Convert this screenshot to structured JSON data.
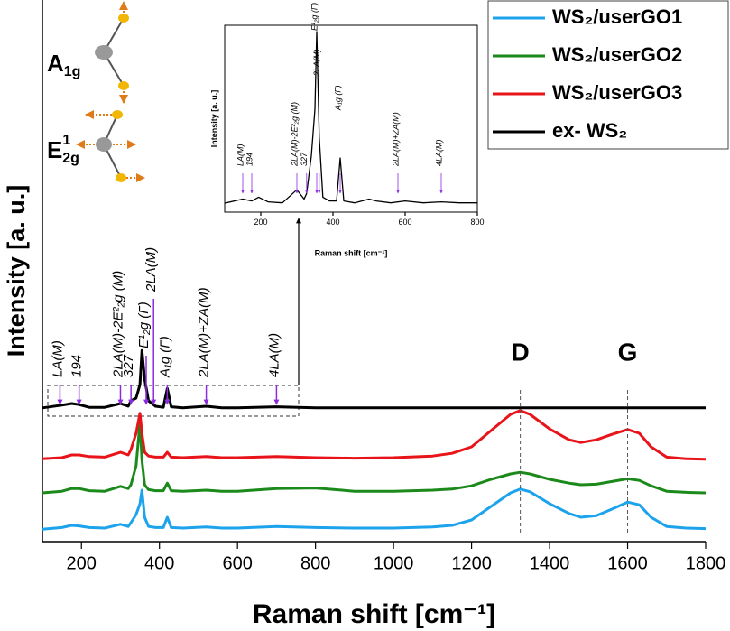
{
  "chart_data": [
    {
      "type": "line",
      "xlabel": "Raman shift [cm⁻¹]",
      "ylabel": "Intensity [a. u.]",
      "xlim": [
        100,
        1800
      ],
      "ylim": [
        0,
        100
      ],
      "xticks": [
        200,
        400,
        600,
        800,
        1000,
        1200,
        1400,
        1600,
        1800
      ],
      "legend": "upper right",
      "x": [
        100,
        150,
        175,
        194,
        220,
        260,
        300,
        320,
        327,
        340,
        350,
        355,
        362,
        372,
        390,
        410,
        420,
        430,
        460,
        520,
        560,
        600,
        700,
        800,
        900,
        1000,
        1100,
        1150,
        1200,
        1250,
        1300,
        1325,
        1350,
        1400,
        1450,
        1480,
        1520,
        1560,
        1600,
        1630,
        1660,
        1700,
        1750,
        1800
      ],
      "series": [
        {
          "name": "WS₂/userGO1",
          "color": "#1ca3ec",
          "values": [
            2.3,
            2.6,
            3.0,
            2.9,
            2.6,
            2.5,
            3.2,
            2.8,
            3.5,
            5,
            7,
            9.5,
            4.5,
            2.8,
            2.6,
            2.6,
            4.5,
            2.6,
            2.5,
            2.7,
            2.5,
            2.5,
            2.8,
            2.6,
            2.5,
            2.5,
            2.7,
            3.0,
            4.0,
            6.5,
            9.0,
            9.7,
            9.2,
            7.0,
            5.2,
            4.5,
            4.8,
            6.0,
            7.3,
            6.8,
            4.5,
            2.8,
            2.5,
            2.4
          ]
        },
        {
          "name": "WS₂/userGO2",
          "color": "#1b8a1b",
          "values": [
            9.0,
            9.3,
            9.8,
            9.8,
            9.4,
            9.3,
            10.2,
            9.8,
            10.5,
            14,
            22,
            15,
            10.5,
            9.6,
            9.4,
            9.4,
            10.8,
            9.4,
            9.3,
            9.5,
            9.3,
            9.3,
            9.8,
            9.9,
            9.3,
            9.3,
            9.5,
            9.7,
            10.3,
            11.5,
            12.5,
            12.8,
            12.5,
            11.5,
            10.8,
            10.5,
            10.6,
            11.1,
            11.6,
            11.3,
            10.3,
            9.3,
            9.1,
            9.0
          ]
        },
        {
          "name": "WS₂/userGO3",
          "color": "#e8141a",
          "values": [
            15.3,
            15.5,
            16,
            16,
            15.7,
            15.6,
            16.5,
            16,
            17,
            20,
            23.7,
            20,
            16.5,
            15.8,
            15.6,
            15.6,
            16.5,
            15.6,
            15.5,
            15.7,
            15.5,
            15.5,
            15.7,
            15.5,
            15.4,
            15.5,
            15.8,
            16.3,
            17.5,
            20.5,
            23.5,
            24.2,
            23.5,
            20.8,
            18.8,
            18.3,
            18.8,
            19.8,
            20.7,
            20,
            17.5,
            15.6,
            15.3,
            15.2
          ]
        },
        {
          "name": "ex- WS₂",
          "color": "#000000",
          "values": [
            24.7,
            25.2,
            25.5,
            25.3,
            24.8,
            24.8,
            25.5,
            25.0,
            26.0,
            26.5,
            29,
            35.3,
            30,
            26.0,
            25,
            24.8,
            28.3,
            24.9,
            24.7,
            25.0,
            24.7,
            24.7,
            24.9,
            24.7,
            24.7,
            24.7,
            24.7,
            24.7,
            24.7,
            24.7,
            24.7,
            24.7,
            24.7,
            24.7,
            24.7,
            24.7,
            24.7,
            24.7,
            24.7,
            24.7,
            24.7,
            24.7,
            24.7,
            24.7
          ]
        }
      ],
      "annotations": [
        {
          "text": "LA(M)",
          "x": 145
        },
        {
          "text": "194",
          "x": 194
        },
        {
          "text": "2LA(M)-2E²₂g (M)",
          "x": 300
        },
        {
          "text": "327",
          "x": 327
        },
        {
          "text": "E¹₂g (Γ)",
          "x": 366
        },
        {
          "text": "2LA(M)",
          "x": 385
        },
        {
          "text": "A₁g (Γ)",
          "x": 420
        },
        {
          "text": "2LA(M)+ZA(M)",
          "x": 520
        },
        {
          "text": "4LA(M)",
          "x": 700
        }
      ],
      "peaks": [
        {
          "text": "D",
          "x": 1325
        },
        {
          "text": "G",
          "x": 1600
        }
      ],
      "modes": [
        {
          "base": "A",
          "sub": "1g"
        },
        {
          "base": "E",
          "sup": "1",
          "sub": "2g"
        }
      ]
    },
    {
      "type": "line",
      "xlabel": "Raman shift [cm⁻¹]",
      "ylabel": "Intensity [a. u.]",
      "xlim": [
        100,
        800
      ],
      "ylim": [
        0,
        100
      ],
      "xticks": [
        200,
        400,
        600,
        800
      ],
      "x": [
        100,
        150,
        175,
        194,
        220,
        260,
        300,
        320,
        327,
        340,
        350,
        355,
        362,
        372,
        390,
        410,
        420,
        430,
        460,
        500,
        520,
        560,
        600,
        650,
        700,
        750,
        800
      ],
      "series": [
        {
          "color": "#000000",
          "values": [
            4.8,
            7,
            6,
            8,
            5.5,
            5,
            12,
            7,
            10,
            30,
            55,
            96.6,
            40,
            8,
            6,
            6,
            29,
            6,
            5,
            7,
            6,
            5,
            6,
            5,
            5.5,
            5,
            5
          ]
        }
      ],
      "annotations": [
        {
          "text": "LA(M)",
          "x": 150
        },
        {
          "text": "194",
          "x": 175
        },
        {
          "text": "2LA(M)-2E²₂g (M)",
          "x": 300
        },
        {
          "text": "327",
          "x": 327
        },
        {
          "text": "E¹₂g (Γ)",
          "x": 355
        },
        {
          "text": "2LA(M)",
          "x": 362
        },
        {
          "text": "A₁g (Γ)",
          "x": 420
        },
        {
          "text": "2LA(M)+ZA(M)",
          "x": 580
        },
        {
          "text": "4LA(M)",
          "x": 700
        }
      ]
    }
  ]
}
